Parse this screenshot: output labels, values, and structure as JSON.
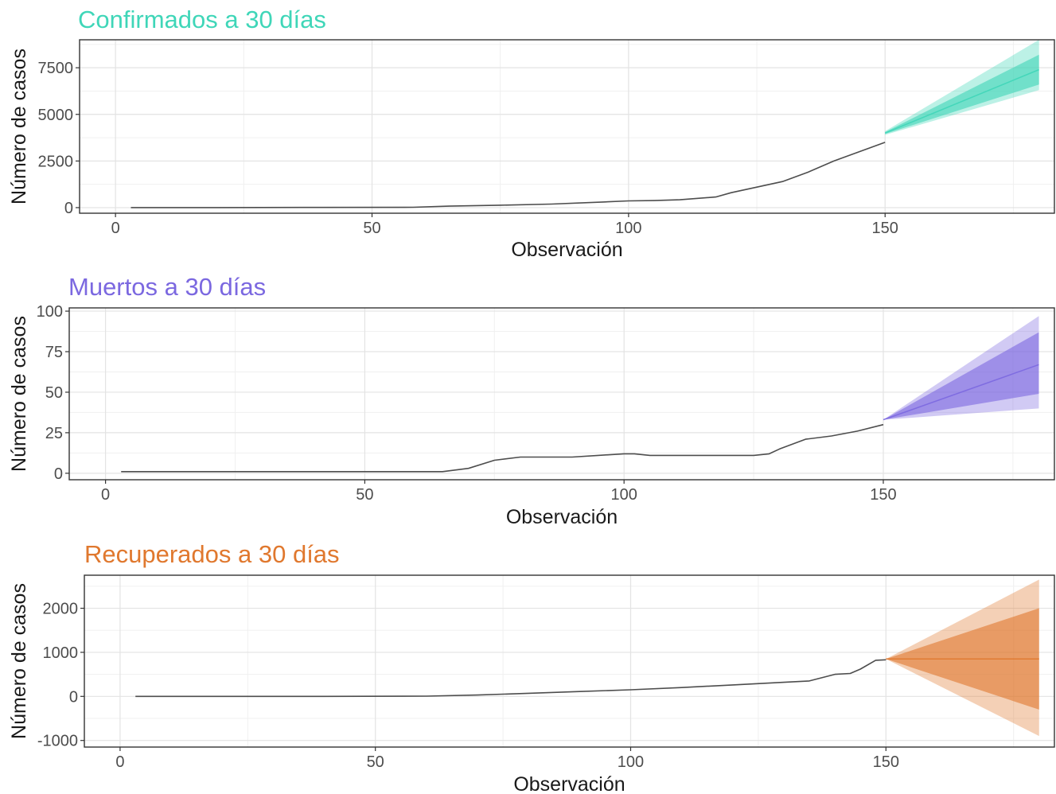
{
  "chart_data": [
    {
      "type": "line",
      "title": "Confirmados a 30 días",
      "title_color": "#3fd6b8",
      "band_color": "#3fd6b8",
      "xlabel": "Observación",
      "ylabel": "Número de casos",
      "xlim": [
        -7,
        183
      ],
      "ylim": [
        -300,
        9000
      ],
      "x_ticks": [
        0,
        50,
        100,
        150
      ],
      "y_ticks": [
        0,
        2500,
        5000,
        7500
      ],
      "grid": true,
      "observed": {
        "x": [
          3,
          20,
          40,
          58,
          65,
          75,
          85,
          95,
          100,
          105,
          110,
          117,
          120,
          125,
          130,
          135,
          140,
          145,
          150
        ],
        "y": [
          5,
          5,
          10,
          20,
          80,
          130,
          190,
          300,
          360,
          380,
          420,
          570,
          800,
          1100,
          1400,
          1900,
          2500,
          3000,
          3500
        ]
      },
      "forecast": {
        "x": [
          150,
          180
        ],
        "mean": [
          4000,
          7400
        ],
        "lo80": [
          3950,
          6600
        ],
        "hi80": [
          4050,
          8200
        ],
        "lo95": [
          3900,
          6300
        ],
        "hi95": [
          4100,
          9000
        ]
      }
    },
    {
      "type": "line",
      "title": "Muertos a 30 días",
      "title_color": "#7b68e0",
      "band_color": "#7b68e0",
      "xlabel": "Observación",
      "ylabel": "Número de casos",
      "xlim": [
        -7,
        183
      ],
      "ylim": [
        -4,
        102
      ],
      "x_ticks": [
        0,
        50,
        100,
        150
      ],
      "y_ticks": [
        0,
        25,
        50,
        75,
        100
      ],
      "grid": true,
      "observed": {
        "x": [
          3,
          20,
          40,
          60,
          65,
          70,
          75,
          80,
          90,
          95,
          100,
          102,
          105,
          115,
          125,
          128,
          130,
          135,
          140,
          145,
          150
        ],
        "y": [
          1,
          1,
          1,
          1,
          1,
          3,
          8,
          10,
          10,
          11,
          12,
          12,
          11,
          11,
          11,
          12,
          15,
          21,
          23,
          26,
          30
        ]
      },
      "forecast": {
        "x": [
          150,
          180
        ],
        "mean": [
          33,
          67
        ],
        "lo80": [
          33,
          49
        ],
        "hi80": [
          33,
          87
        ],
        "lo95": [
          33,
          40
        ],
        "hi95": [
          33,
          97
        ]
      }
    },
    {
      "type": "line",
      "title": "Recuperados a 30 días",
      "title_color": "#e0782e",
      "band_color": "#e0782e",
      "xlabel": "Observación",
      "ylabel": "Número de casos",
      "xlim": [
        -7,
        183
      ],
      "ylim": [
        -1150,
        2750
      ],
      "x_ticks": [
        0,
        50,
        100,
        150
      ],
      "y_ticks": [
        -1000,
        0,
        1000,
        2000
      ],
      "grid": true,
      "observed": {
        "x": [
          3,
          20,
          40,
          60,
          70,
          80,
          90,
          100,
          110,
          120,
          130,
          135,
          140,
          143,
          145,
          148,
          150
        ],
        "y": [
          0,
          0,
          0,
          5,
          30,
          70,
          110,
          150,
          200,
          260,
          320,
          350,
          500,
          520,
          620,
          820,
          830
        ]
      },
      "forecast": {
        "x": [
          150,
          180
        ],
        "mean": [
          850,
          850
        ],
        "lo80": [
          850,
          -300
        ],
        "hi80": [
          850,
          2000
        ],
        "lo95": [
          850,
          -900
        ],
        "hi95": [
          850,
          2650
        ]
      }
    }
  ]
}
